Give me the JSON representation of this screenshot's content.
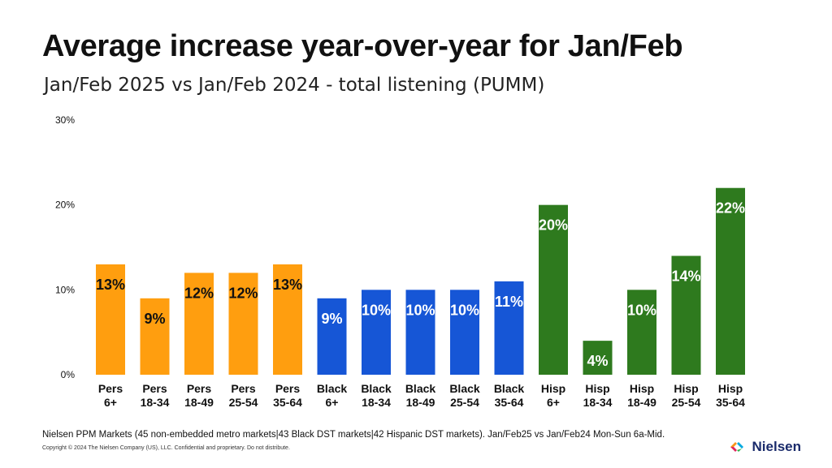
{
  "header": {
    "title": "Average increase year-over-year for Jan/Feb",
    "subtitle": "Jan/Feb 2025 vs Jan/Feb 2024 - total listening (PUMM)"
  },
  "footer": {
    "footnote": "Nielsen PPM Markets (45 non-embedded metro markets|43 Black DST markets|42 Hispanic DST markets). Jan/Feb25 vs Jan/Feb24 Mon-Sun 6a-Mid.",
    "copyright": "Copyright © 2024 The Nielsen Company (US), LLC. Confidential and proprietary. Do not distribute.",
    "logo_text": "Nielsen"
  },
  "chart_data": {
    "type": "bar",
    "title": "",
    "xlabel": "",
    "ylabel": "",
    "ylim": [
      0,
      30
    ],
    "yticks": [
      0,
      10,
      20,
      30
    ],
    "ytick_labels": [
      "0%",
      "10%",
      "20%",
      "30%"
    ],
    "grid": false,
    "legend": "none",
    "categories": [
      [
        "Pers",
        "6+"
      ],
      [
        "Pers",
        "18-34"
      ],
      [
        "Pers",
        "18-49"
      ],
      [
        "Pers",
        "25-54"
      ],
      [
        "Pers",
        "35-64"
      ],
      [
        "Black",
        "6+"
      ],
      [
        "Black",
        "18-34"
      ],
      [
        "Black",
        "18-49"
      ],
      [
        "Black",
        "25-54"
      ],
      [
        "Black",
        "35-64"
      ],
      [
        "Hisp",
        "6+"
      ],
      [
        "Hisp",
        "18-34"
      ],
      [
        "Hisp",
        "18-49"
      ],
      [
        "Hisp",
        "25-54"
      ],
      [
        "Hisp",
        "35-64"
      ]
    ],
    "values": [
      13,
      9,
      12,
      12,
      13,
      9,
      10,
      10,
      10,
      11,
      20,
      4,
      10,
      14,
      22
    ],
    "data_labels": [
      "13%",
      "9%",
      "12%",
      "12%",
      "13%",
      "9%",
      "10%",
      "10%",
      "10%",
      "11%",
      "20%",
      "4%",
      "10%",
      "14%",
      "22%"
    ],
    "bar_colors": [
      "#ff9e0f",
      "#ff9e0f",
      "#ff9e0f",
      "#ff9e0f",
      "#ff9e0f",
      "#1656d6",
      "#1656d6",
      "#1656d6",
      "#1656d6",
      "#1656d6",
      "#2e7a1e",
      "#2e7a1e",
      "#2e7a1e",
      "#2e7a1e",
      "#2e7a1e"
    ],
    "label_colors": [
      "#111111",
      "#111111",
      "#111111",
      "#111111",
      "#111111",
      "#ffffff",
      "#ffffff",
      "#ffffff",
      "#ffffff",
      "#ffffff",
      "#ffffff",
      "#ffffff",
      "#ffffff",
      "#ffffff",
      "#ffffff"
    ],
    "label_outline_colors": [
      "#ff9e0f",
      "#ff9e0f",
      "#ff9e0f",
      "#ff9e0f",
      "#ff9e0f",
      "#1656d6",
      "#1656d6",
      "#1656d6",
      "#1656d6",
      "#1656d6",
      "#2e7a1e",
      "#2e7a1e",
      "#2e7a1e",
      "#2e7a1e",
      "#2e7a1e"
    ]
  }
}
